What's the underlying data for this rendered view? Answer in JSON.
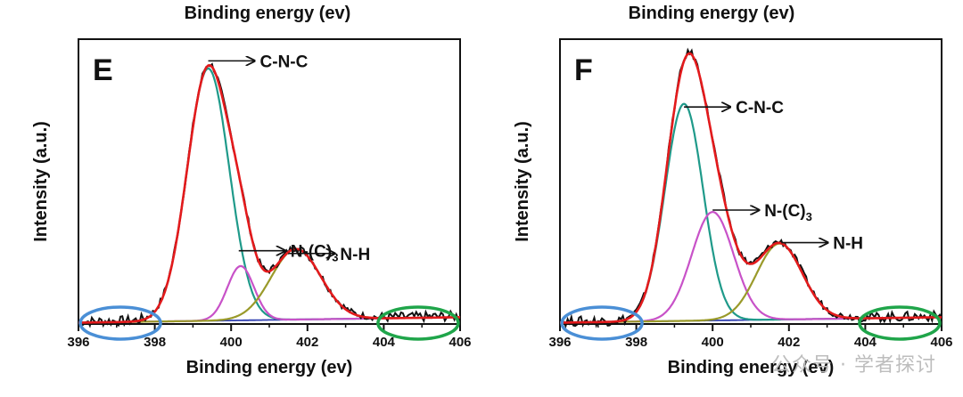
{
  "top_text": "Binding energy (ev)",
  "watermark": "公众号 · 学者探讨",
  "chart_data": [
    {
      "type": "line",
      "panel_label": "E",
      "xlabel": "Binding energy (ev)",
      "ylabel": "Intensity (a.u.)",
      "xlim": [
        396,
        406
      ],
      "ylim": [
        0,
        1.05
      ],
      "x_ticks": [
        396,
        398,
        400,
        402,
        404,
        406
      ],
      "grid": false,
      "peaks": [
        {
          "label": "C-N-C",
          "center": 399.4,
          "height": 0.93,
          "width": 0.55
        },
        {
          "label": "N-(C)3",
          "center": 400.25,
          "height": 0.2,
          "width": 0.35
        },
        {
          "label": "N-H",
          "center": 401.7,
          "height": 0.26,
          "width": 0.65
        }
      ],
      "annotations": [
        {
          "text": "C-N-C",
          "peak_x": 399.4,
          "peak_y": 0.97
        },
        {
          "text": "N-(C)",
          "subscript": "3",
          "peak_x": 400.2,
          "peak_y": 0.27
        },
        {
          "text": "N-H",
          "peak_x": 401.5,
          "peak_y": 0.26
        }
      ],
      "highlights": [
        {
          "color": "#4a8fd6",
          "x_center": 397.1
        },
        {
          "color": "#1fa54a",
          "x_center": 404.9
        }
      ],
      "series": [
        {
          "role": "raw",
          "color": "#111111"
        },
        {
          "role": "envelope",
          "color": "#e31a1c"
        },
        {
          "role": "C-N-C component",
          "color": "#1f9a8a"
        },
        {
          "role": "N-(C)3 component",
          "color": "#c852c8"
        },
        {
          "role": "N-H component",
          "color": "#9a9a2a"
        },
        {
          "role": "baseline",
          "color": "#2f3fb0"
        }
      ]
    },
    {
      "type": "line",
      "panel_label": "F",
      "xlabel": "Binding energy (ev)",
      "ylabel": "Intensity (a.u.)",
      "xlim": [
        396,
        406
      ],
      "ylim": [
        0,
        1.05
      ],
      "x_ticks": [
        396,
        398,
        400,
        402,
        404,
        406
      ],
      "grid": false,
      "peaks": [
        {
          "label": "C-N-C",
          "center": 399.25,
          "height": 0.8,
          "width": 0.5
        },
        {
          "label": "N-(C)3",
          "center": 400.0,
          "height": 0.4,
          "width": 0.55
        },
        {
          "label": "N-H",
          "center": 401.75,
          "height": 0.28,
          "width": 0.6
        }
      ],
      "annotations": [
        {
          "text": "C-N-C",
          "peak_x": 399.25,
          "peak_y": 0.8
        },
        {
          "text": "N-(C)",
          "subscript": "3",
          "peak_x": 400.0,
          "peak_y": 0.42
        },
        {
          "text": "N-H",
          "peak_x": 401.8,
          "peak_y": 0.3
        }
      ],
      "highlights": [
        {
          "color": "#4a8fd6",
          "x_center": 397.1
        },
        {
          "color": "#1fa54a",
          "x_center": 404.9
        }
      ],
      "series": [
        {
          "role": "raw",
          "color": "#111111"
        },
        {
          "role": "envelope",
          "color": "#e31a1c"
        },
        {
          "role": "C-N-C component",
          "color": "#1f9a8a"
        },
        {
          "role": "N-(C)3 component",
          "color": "#c852c8"
        },
        {
          "role": "N-H component",
          "color": "#9a9a2a"
        },
        {
          "role": "baseline",
          "color": "#2f3fb0"
        }
      ]
    }
  ]
}
